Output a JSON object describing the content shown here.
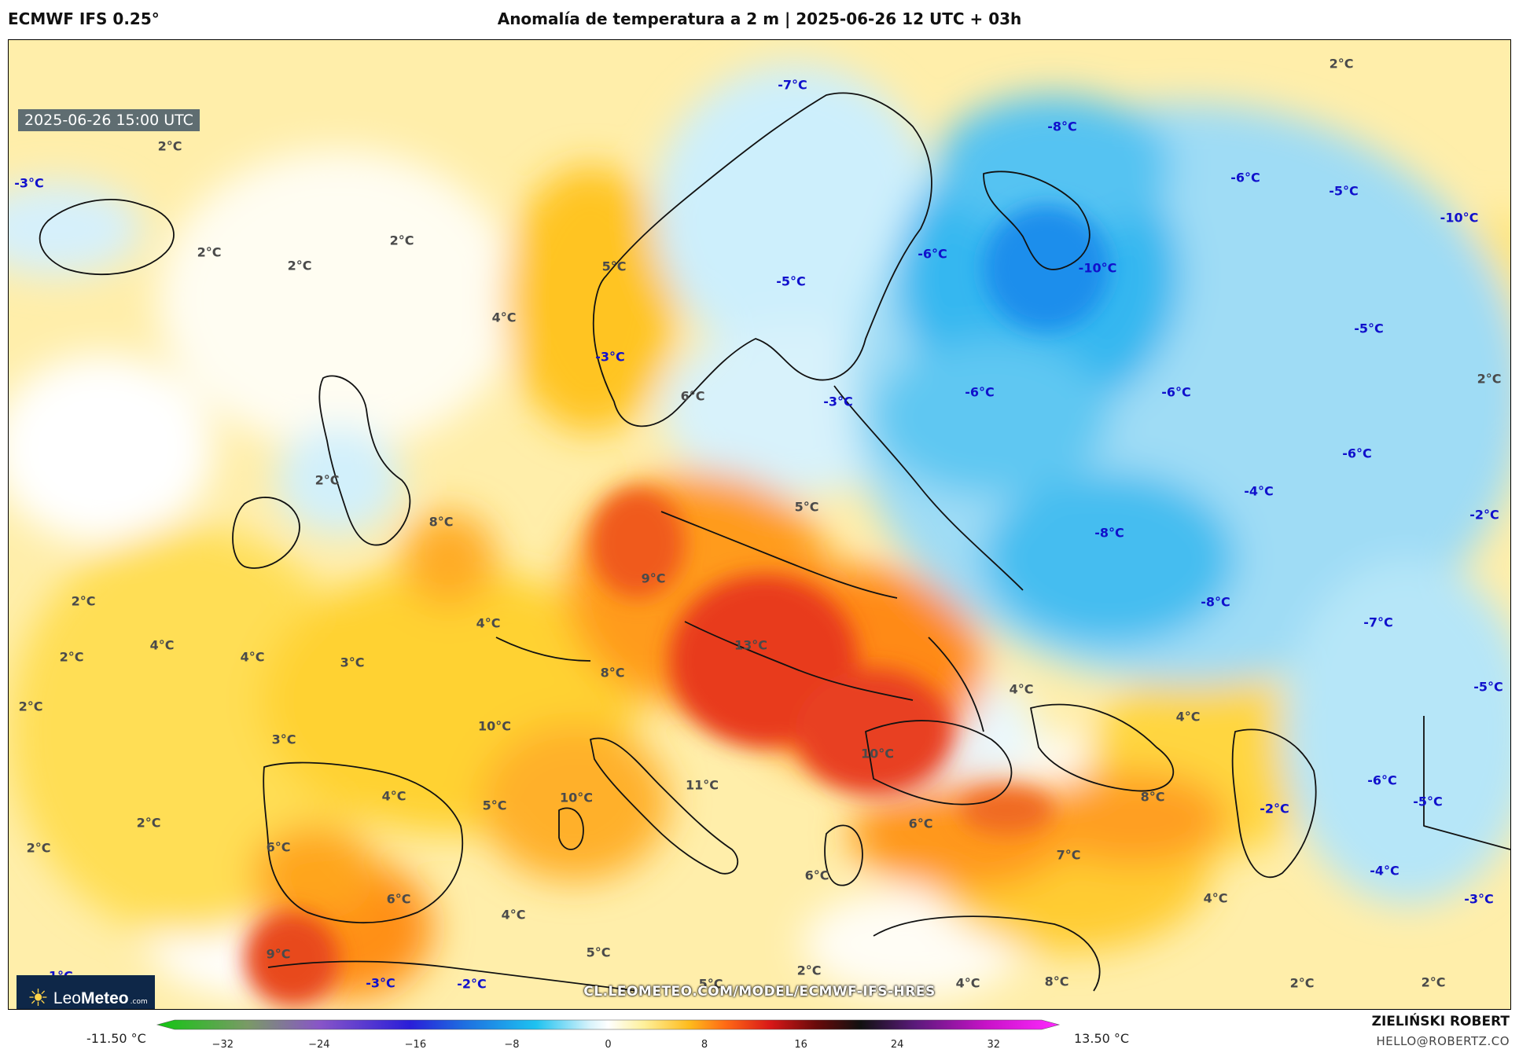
{
  "header": {
    "model": "ECMWF IFS 0.25°",
    "title": "Anomalía de temperatura a 2 m | 2025-06-26 12 UTC + 03h"
  },
  "map": {
    "timestamp": "2025-06-26 15:00 UTC",
    "source_url": "CL.LEOMETEO.COM/MODEL/ECMWF-IFS-HRES",
    "labels": [
      {
        "text": "2°C",
        "kind": "pos"
      },
      {
        "text": "2°C",
        "kind": "pos"
      },
      {
        "text": "2°C",
        "kind": "pos"
      },
      {
        "text": "2°C",
        "kind": "pos"
      },
      {
        "text": "2°C",
        "kind": "pos"
      },
      {
        "text": "2°C",
        "kind": "pos"
      },
      {
        "text": "-3°C",
        "kind": "neg"
      },
      {
        "text": "-7°C",
        "kind": "neg"
      },
      {
        "text": "-8°C",
        "kind": "neg"
      },
      {
        "text": "-6°C",
        "kind": "neg"
      },
      {
        "text": "-5°C",
        "kind": "neg"
      },
      {
        "text": "-10°C",
        "kind": "neg"
      },
      {
        "text": "5°C",
        "kind": "pos"
      },
      {
        "text": "4°C",
        "kind": "pos"
      },
      {
        "text": "-6°C",
        "kind": "neg"
      },
      {
        "text": "-5°C",
        "kind": "neg"
      },
      {
        "text": "-10°C",
        "kind": "neg"
      },
      {
        "text": "-3°C",
        "kind": "neg"
      },
      {
        "text": "6°C",
        "kind": "pos"
      },
      {
        "text": "-3°C",
        "kind": "neg"
      },
      {
        "text": "-6°C",
        "kind": "neg"
      },
      {
        "text": "-6°C",
        "kind": "neg"
      },
      {
        "text": "-5°C",
        "kind": "neg"
      },
      {
        "text": "2°C",
        "kind": "pos"
      },
      {
        "text": "2°C",
        "kind": "pos"
      },
      {
        "text": "8°C",
        "kind": "pos"
      },
      {
        "text": "5°C",
        "kind": "pos"
      },
      {
        "text": "-6°C",
        "kind": "neg"
      },
      {
        "text": "-4°C",
        "kind": "neg"
      },
      {
        "text": "-2°C",
        "kind": "neg"
      },
      {
        "text": "-8°C",
        "kind": "neg"
      },
      {
        "text": "2°C",
        "kind": "pos"
      },
      {
        "text": "9°C",
        "kind": "pos"
      },
      {
        "text": "-8°C",
        "kind": "neg"
      },
      {
        "text": "4°C",
        "kind": "pos"
      },
      {
        "text": "-7°C",
        "kind": "neg"
      },
      {
        "text": "4°C",
        "kind": "pos"
      },
      {
        "text": "4°C",
        "kind": "pos"
      },
      {
        "text": "3°C",
        "kind": "pos"
      },
      {
        "text": "13°C",
        "kind": "pos"
      },
      {
        "text": "2°C",
        "kind": "pos"
      },
      {
        "text": "8°C",
        "kind": "pos"
      },
      {
        "text": "4°C",
        "kind": "pos"
      },
      {
        "text": "-5°C",
        "kind": "neg"
      },
      {
        "text": "10°C",
        "kind": "pos"
      },
      {
        "text": "4°C",
        "kind": "pos"
      },
      {
        "text": "3°C",
        "kind": "pos"
      },
      {
        "text": "10°C",
        "kind": "pos"
      },
      {
        "text": "11°C",
        "kind": "pos"
      },
      {
        "text": "-6°C",
        "kind": "neg"
      },
      {
        "text": "4°C",
        "kind": "pos"
      },
      {
        "text": "5°C",
        "kind": "pos"
      },
      {
        "text": "10°C",
        "kind": "pos"
      },
      {
        "text": "8°C",
        "kind": "pos"
      },
      {
        "text": "-2°C",
        "kind": "neg"
      },
      {
        "text": "-5°C",
        "kind": "neg"
      },
      {
        "text": "2°C",
        "kind": "pos"
      },
      {
        "text": "6°C",
        "kind": "pos"
      },
      {
        "text": "6°C",
        "kind": "pos"
      },
      {
        "text": "2°C",
        "kind": "pos"
      },
      {
        "text": "6°C",
        "kind": "pos"
      },
      {
        "text": "7°C",
        "kind": "pos"
      },
      {
        "text": "-4°C",
        "kind": "neg"
      },
      {
        "text": "6°C",
        "kind": "pos"
      },
      {
        "text": "4°C",
        "kind": "pos"
      },
      {
        "text": "4°C",
        "kind": "pos"
      },
      {
        "text": "-3°C",
        "kind": "neg"
      },
      {
        "text": "5°C",
        "kind": "pos"
      },
      {
        "text": "2°C",
        "kind": "pos"
      },
      {
        "text": "9°C",
        "kind": "pos"
      },
      {
        "text": "-1°C",
        "kind": "neg"
      },
      {
        "text": "-3°C",
        "kind": "neg"
      },
      {
        "text": "-2°C",
        "kind": "neg"
      },
      {
        "text": "5°C",
        "kind": "pos"
      },
      {
        "text": "4°C",
        "kind": "pos"
      },
      {
        "text": "8°C",
        "kind": "pos"
      },
      {
        "text": "2°C",
        "kind": "pos"
      },
      {
        "text": "2°C",
        "kind": "pos"
      }
    ]
  },
  "logo": {
    "brand_light": "Leo",
    "brand_bold": "Meteo",
    "suffix": ".com"
  },
  "colorbar": {
    "min_label": "-11.50 °C",
    "max_label": "13.50 °C",
    "ticks": [
      "−32",
      "−24",
      "−16",
      "−8",
      "0",
      "8",
      "16",
      "24",
      "32"
    ],
    "range": [
      -36,
      36
    ]
  },
  "footer": {
    "author": "ZIELIŃSKI ROBERT",
    "contact": "HELLO@ROBERTZ.CO"
  }
}
